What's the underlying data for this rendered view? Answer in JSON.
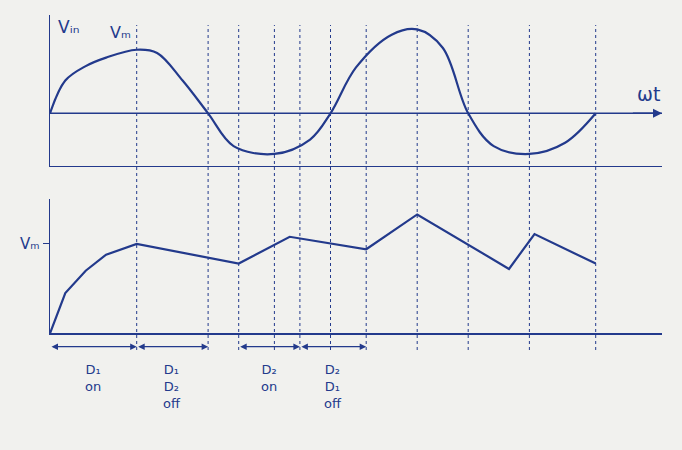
{
  "chart_data": [
    {
      "type": "line",
      "y_label": "Vᵢₙ",
      "x_label": "ωt",
      "x": [
        0,
        0.3,
        0.7,
        1.1,
        1.7,
        2.1,
        2.6,
        3.1,
        3.6,
        4.4,
        5.1,
        5.5,
        6.0,
        6.7,
        7.2,
        7.7,
        8.2,
        8.7,
        9.4,
        10.1,
        10.7
      ],
      "values": [
        0,
        0.5,
        0.72,
        0.85,
        0.97,
        0.92,
        0.5,
        0,
        -0.5,
        -0.62,
        -0.4,
        0,
        0.7,
        1.2,
        1.28,
        1.0,
        0,
        -0.5,
        -0.62,
        -0.45,
        0
      ],
      "color": "#233a8c",
      "xlim": [
        0,
        12
      ],
      "ylim": [
        -0.8,
        1.5
      ],
      "xticks": [],
      "yticks": [],
      "tick_labels": false,
      "annotations": [
        {
          "x": 1.7,
          "y": 0.97,
          "text": "Vₘ"
        }
      ],
      "guides": [
        1.7,
        3.1,
        3.7,
        4.4,
        4.9,
        5.5,
        6.2,
        7.2,
        8.2,
        9.4,
        10.7
      ]
    },
    {
      "type": "line",
      "x": [
        0,
        0.3,
        0.7,
        1.1,
        1.7,
        3.7,
        4.7,
        6.2,
        7.2,
        9.0,
        9.5,
        10.7
      ],
      "values": [
        0,
        0.45,
        0.7,
        0.88,
        1.0,
        0.78,
        1.08,
        0.94,
        1.33,
        0.72,
        1.11,
        0.78
      ],
      "color": "#233a8c",
      "xlim": [
        0,
        12
      ],
      "ylim": [
        0,
        1.5
      ],
      "xticks": [],
      "yticks": [
        {
          "value": 1,
          "label": "Vₘ"
        }
      ],
      "tick_labels": "y",
      "intervals": [
        {
          "start": 0,
          "end": 1.7,
          "label": "D₁ on"
        },
        {
          "start": 1.7,
          "end": 3.1,
          "label": "D₁ D₂ off"
        },
        {
          "start": 3.7,
          "end": 4.9,
          "label": "D₂ on"
        },
        {
          "start": 4.9,
          "end": 6.2,
          "label": "D₂ D₁ off"
        }
      ]
    }
  ]
}
